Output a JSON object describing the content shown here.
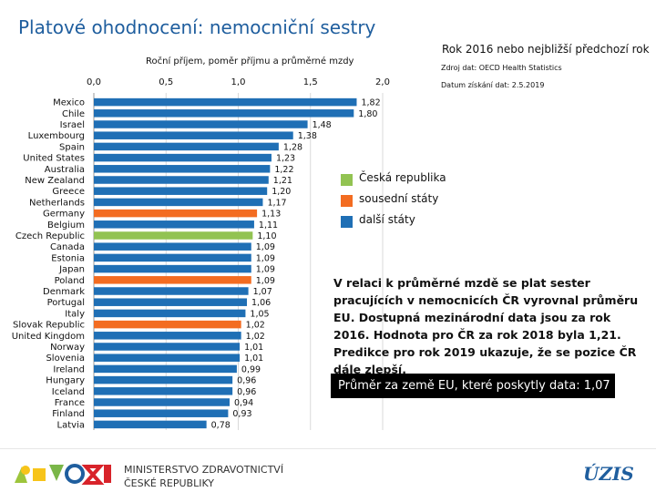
{
  "title": "Platové ohodnocení: nemocniční sestry",
  "year_note": "Rok 2016 nebo nejbližší předchozí rok",
  "source": "Zdroj dat: OECD Health Statistics",
  "date": "Datum získání dat: 2.5.2019",
  "colors": {
    "czech": "#92c352",
    "neighbor": "#f36c21",
    "other": "#1f6fb5",
    "title": "#1f5e9e"
  },
  "legend": [
    {
      "label": "Česká republika",
      "color": "#92c352"
    },
    {
      "label": "sousední státy",
      "color": "#f36c21"
    },
    {
      "label": "další státy",
      "color": "#1f6fb5"
    }
  ],
  "note": "V relaci k průměrné mzdě se plat sester pracujících v nemocnicích ČR vyrovnal průměru EU. Dostupná mezinárodní data jsou za rok 2016. Hodnota pro ČR za rok 2018 byla 1,21. Predikce pro rok 2019 ukazuje, že se pozice ČR dále zlepší.",
  "average": "Průměr za země EU, které poskytly data: 1,07",
  "footer": {
    "ministry_line1": "MINISTERSTVO ZDRAVOTNICTVÍ",
    "ministry_line2": "ČESKÉ REPUBLIKY",
    "uzis": "ÚZIS"
  },
  "chart_data": {
    "type": "bar",
    "orientation": "horizontal",
    "title": "Roční příjem, poměr příjmu a průměrné mzdy",
    "xlim": [
      0,
      2.0
    ],
    "ticks": [
      0.0,
      0.5,
      1.0,
      1.5,
      2.0
    ],
    "tick_labels": [
      "0,0",
      "0,5",
      "1,0",
      "1,5",
      "2,0"
    ],
    "categories": [
      "Mexico",
      "Chile",
      "Israel",
      "Luxembourg",
      "Spain",
      "United States",
      "Australia",
      "New Zealand",
      "Greece",
      "Netherlands",
      "Germany",
      "Belgium",
      "Czech Republic",
      "Canada",
      "Estonia",
      "Japan",
      "Poland",
      "Denmark",
      "Portugal",
      "Italy",
      "Slovak Republic",
      "United Kingdom",
      "Norway",
      "Slovenia",
      "Ireland",
      "Hungary",
      "Iceland",
      "France",
      "Finland",
      "Latvia"
    ],
    "values": [
      1.82,
      1.8,
      1.48,
      1.38,
      1.28,
      1.23,
      1.22,
      1.21,
      1.2,
      1.17,
      1.13,
      1.11,
      1.1,
      1.09,
      1.09,
      1.09,
      1.09,
      1.07,
      1.06,
      1.05,
      1.02,
      1.02,
      1.01,
      1.01,
      0.99,
      0.96,
      0.96,
      0.94,
      0.93,
      0.78
    ],
    "value_labels": [
      "1,82",
      "1,80",
      "1,48",
      "1,38",
      "1,28",
      "1,23",
      "1,22",
      "1,21",
      "1,20",
      "1,17",
      "1,13",
      "1,11",
      "1,10",
      "1,09",
      "1,09",
      "1,09",
      "1,09",
      "1,07",
      "1,06",
      "1,05",
      "1,02",
      "1,02",
      "1,01",
      "1,01",
      "0,99",
      "0,96",
      "0,96",
      "0,94",
      "0,93",
      "0,78"
    ],
    "groups": [
      "other",
      "other",
      "other",
      "other",
      "other",
      "other",
      "other",
      "other",
      "other",
      "other",
      "neighbor",
      "other",
      "czech",
      "other",
      "other",
      "other",
      "neighbor",
      "other",
      "other",
      "other",
      "neighbor",
      "other",
      "other",
      "other",
      "other",
      "other",
      "other",
      "other",
      "other",
      "other"
    ]
  }
}
